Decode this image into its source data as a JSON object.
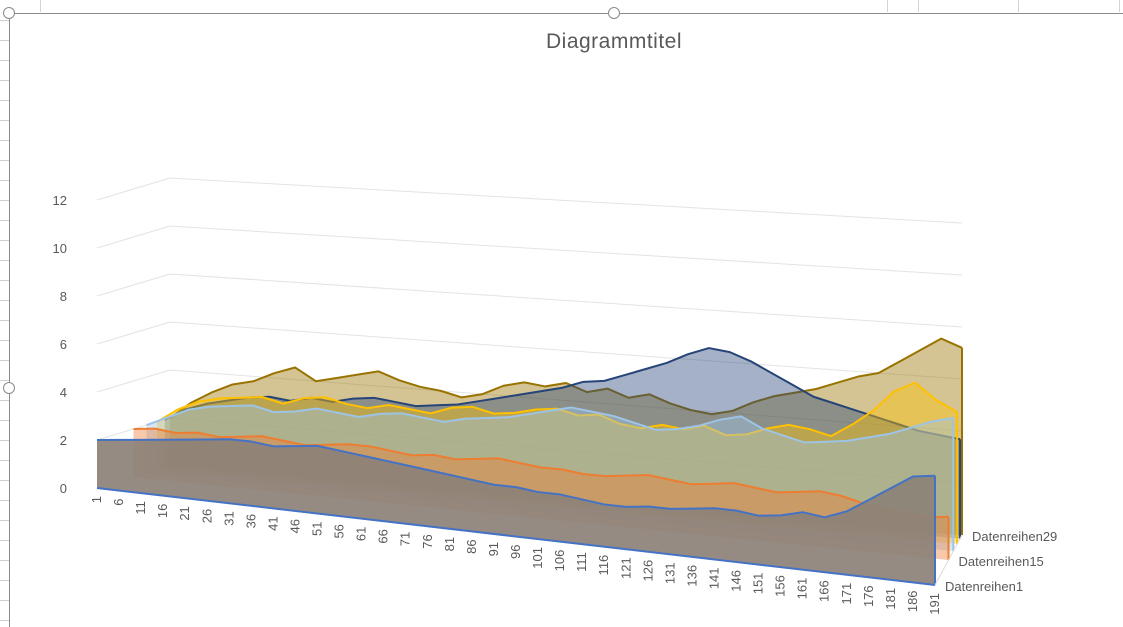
{
  "chart_data": {
    "type": "area",
    "subtype": "3d-area",
    "title": "Diagrammtitel",
    "xlabel": "",
    "ylabel": "",
    "ylim": [
      0,
      12
    ],
    "yticks": [
      "0",
      "2",
      "4",
      "6",
      "8",
      "10",
      "12"
    ],
    "grid": true,
    "categories": [
      "1",
      "6",
      "11",
      "16",
      "21",
      "26",
      "31",
      "36",
      "41",
      "46",
      "51",
      "56",
      "61",
      "66",
      "71",
      "76",
      "81",
      "86",
      "91",
      "96",
      "101",
      "106",
      "111",
      "116",
      "121",
      "126",
      "131",
      "136",
      "141",
      "146",
      "151",
      "156",
      "161",
      "166",
      "171",
      "176",
      "181",
      "186",
      "191"
    ],
    "depth_axis_labels": [
      "Datenreihen1",
      "Datenreihen15",
      "Datenreihen29"
    ],
    "depth_count": 29,
    "series": [
      {
        "name": "Datenreihen29",
        "depth": 29,
        "color": "#997300",
        "values": [
          2,
          2.7,
          3.2,
          3.6,
          3.8,
          4.2,
          4.5,
          4.0,
          4.2,
          4.4,
          4.6,
          4.3,
          4.1,
          4.0,
          3.8,
          4.0,
          4.4,
          4.6,
          4.5,
          4.7,
          4.4,
          4.6,
          4.3,
          4.5,
          4.2,
          4.0,
          3.9,
          4.1,
          4.5,
          4.8,
          5.0,
          5.2,
          5.5,
          5.8,
          6.0,
          6.5,
          7.0,
          7.5,
          7.2
        ]
      },
      {
        "depth": 27,
        "color": "#264478",
        "values": [
          2,
          2.5,
          2.8,
          3.0,
          3.2,
          3.3,
          3.2,
          3.4,
          3.3,
          3.5,
          3.6,
          3.5,
          3.4,
          3.5,
          3.6,
          3.8,
          4.0,
          4.2,
          4.4,
          4.6,
          4.9,
          5.0,
          5.3,
          5.6,
          5.9,
          6.3,
          6.6,
          6.5,
          6.2,
          5.8,
          5.4,
          5.0,
          4.8,
          4.6,
          4.4,
          4.2,
          4.0,
          3.9,
          3.8
        ]
      },
      {
        "depth": 24,
        "color": "#ffc000",
        "values": [
          2,
          2.6,
          3.0,
          3.2,
          3.3,
          3.4,
          3.2,
          3.5,
          3.6,
          3.4,
          3.3,
          3.5,
          3.4,
          3.3,
          3.6,
          3.7,
          3.5,
          3.6,
          3.8,
          3.9,
          3.7,
          3.8,
          3.5,
          3.4,
          3.6,
          3.5,
          3.7,
          3.4,
          3.5,
          3.8,
          4.0,
          3.9,
          3.7,
          4.2,
          4.8,
          5.6,
          6.0,
          5.4,
          5.0
        ]
      },
      {
        "depth": 20,
        "color": "#9dc3e6",
        "values": [
          2,
          2.4,
          2.8,
          3.0,
          3.1,
          3.2,
          3.0,
          3.1,
          3.3,
          3.2,
          3.1,
          3.3,
          3.4,
          3.3,
          3.2,
          3.4,
          3.5,
          3.6,
          3.8,
          4.0,
          4.2,
          4.1,
          4.0,
          3.8,
          3.6,
          3.7,
          3.9,
          4.2,
          4.4,
          4.0,
          3.8,
          3.6,
          3.7,
          3.8,
          4.0,
          4.2,
          4.5,
          4.8,
          5.0
        ]
      },
      {
        "name": "Datenreihen15",
        "depth": 15,
        "color": "#ed7d31",
        "values": [
          2,
          2.1,
          2.0,
          2.1,
          2.0,
          2.1,
          2.2,
          2.1,
          2.0,
          2.1,
          2.2,
          2.2,
          2.1,
          2.0,
          2.1,
          2.0,
          2.1,
          2.2,
          2.1,
          2.0,
          2.0,
          1.9,
          1.9,
          2.0,
          2.1,
          2.0,
          1.9,
          2.0,
          2.1,
          2.0,
          1.9,
          2.0,
          2.1,
          2.0,
          1.8,
          1.7,
          1.6,
          1.5,
          1.6
        ]
      },
      {
        "name": "Datenreihen1",
        "depth": 1,
        "color": "#4472c4",
        "values": [
          2,
          2.1,
          2.2,
          2.3,
          2.4,
          2.5,
          2.6,
          2.6,
          2.5,
          2.6,
          2.7,
          2.6,
          2.5,
          2.4,
          2.3,
          2.2,
          2.1,
          2.0,
          1.9,
          1.9,
          1.8,
          1.8,
          1.7,
          1.6,
          1.6,
          1.7,
          1.7,
          1.8,
          1.9,
          1.9,
          1.8,
          1.9,
          2.1,
          2.0,
          2.3,
          2.8,
          3.3,
          3.8,
          3.9
        ]
      }
    ]
  }
}
